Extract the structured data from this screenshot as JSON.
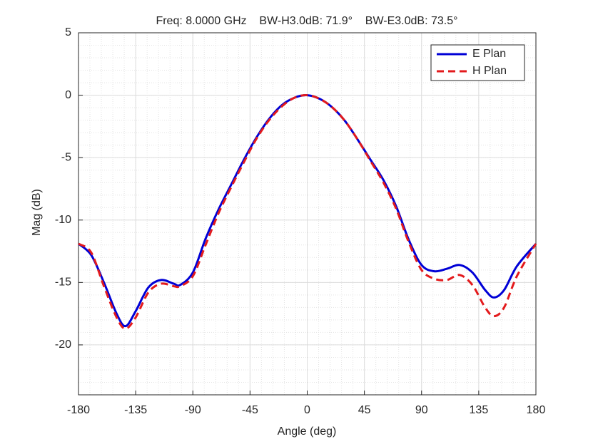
{
  "chart_data": {
    "type": "line",
    "title": "Freq: 8.0000 GHz    BW-H3.0dB: 71.9°    BW-E3.0dB: 73.5°",
    "x_label": "Angle (deg)",
    "y_label": "Mag (dB)",
    "x": [
      -180,
      -170,
      -160,
      -150,
      -143,
      -135,
      -125,
      -115,
      -105,
      -100,
      -90,
      -80,
      -70,
      -60,
      -50,
      -40,
      -30,
      -20,
      -10,
      0,
      10,
      20,
      30,
      40,
      50,
      60,
      70,
      80,
      90,
      100,
      110,
      120,
      130,
      140,
      147,
      155,
      165,
      180
    ],
    "series": [
      {
        "name": "E Plan",
        "color": "#0000d6",
        "dash": "solid",
        "values": [
          -11.9,
          -12.8,
          -15,
          -17.5,
          -18.5,
          -17.3,
          -15.4,
          -14.8,
          -15.1,
          -15.2,
          -14.2,
          -11.5,
          -9.2,
          -7.2,
          -5.2,
          -3.4,
          -1.9,
          -0.8,
          -0.2,
          0,
          -0.3,
          -1.0,
          -2.1,
          -3.6,
          -5.2,
          -6.8,
          -8.9,
          -11.6,
          -13.6,
          -14.1,
          -13.9,
          -13.6,
          -14.2,
          -15.6,
          -16.2,
          -15.6,
          -13.7,
          -11.9
        ]
      },
      {
        "name": "H Plan",
        "color": "#e31a1c",
        "dash": "dashed",
        "values": [
          -11.9,
          -12.6,
          -15.3,
          -17.8,
          -18.7,
          -17.8,
          -15.8,
          -15.1,
          -15.3,
          -15.3,
          -14.5,
          -12,
          -9.5,
          -7.4,
          -5.4,
          -3.5,
          -2,
          -0.9,
          -0.2,
          0,
          -0.3,
          -1.0,
          -2.1,
          -3.6,
          -5.3,
          -7.0,
          -9.1,
          -11.8,
          -14.0,
          -14.7,
          -14.8,
          -14.4,
          -15.2,
          -17.0,
          -17.7,
          -17.0,
          -14.5,
          -11.9
        ]
      }
    ],
    "xlim": [
      -180,
      180
    ],
    "xticks": [
      -180,
      -135,
      -90,
      -45,
      0,
      45,
      90,
      135,
      180
    ],
    "ylim": [
      -24,
      5
    ],
    "yticks": [
      -20,
      -15,
      -10,
      -5,
      0,
      5
    ],
    "grid": true,
    "minor_grid": true,
    "legend": "top-right"
  }
}
